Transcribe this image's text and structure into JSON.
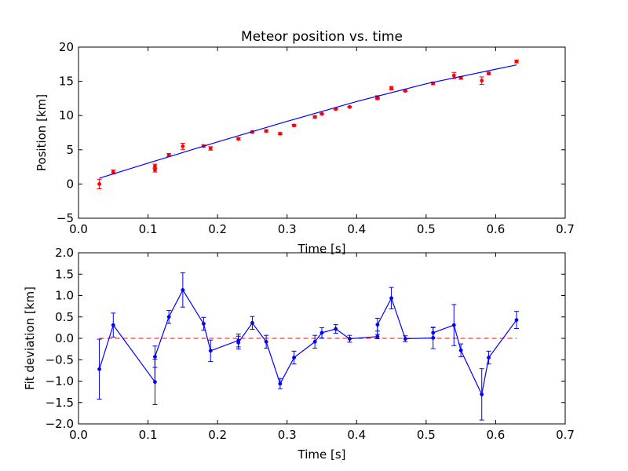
{
  "chart_data": [
    {
      "type": "scatter",
      "title": "Meteor position vs. time",
      "xlabel": "Time [s]",
      "ylabel": "Position [km]",
      "xlim": [
        0.0,
        0.7
      ],
      "ylim": [
        -5,
        20
      ],
      "xticks": [
        "0.0",
        "0.1",
        "0.2",
        "0.3",
        "0.4",
        "0.5",
        "0.6",
        "0.7"
      ],
      "yticks": [
        "−5",
        "0",
        "5",
        "10",
        "15",
        "20"
      ],
      "xtick_values": [
        0.0,
        0.1,
        0.2,
        0.3,
        0.4,
        0.5,
        0.6,
        0.7
      ],
      "ytick_values": [
        -5,
        0,
        5,
        10,
        15,
        20
      ],
      "grid": false,
      "series": [
        {
          "kind": "errorbar-points",
          "color": "#ff0000",
          "x": [
            0.03,
            0.05,
            0.11,
            0.11,
            0.13,
            0.15,
            0.18,
            0.19,
            0.23,
            0.25,
            0.27,
            0.29,
            0.31,
            0.34,
            0.35,
            0.37,
            0.39,
            0.43,
            0.43,
            0.45,
            0.47,
            0.51,
            0.54,
            0.55,
            0.58,
            0.59,
            0.63
          ],
          "y": [
            0.0,
            1.75,
            2.6,
            2.05,
            4.25,
            5.5,
            5.55,
            5.2,
            6.6,
            7.6,
            7.75,
            7.35,
            8.55,
            9.8,
            10.25,
            10.95,
            11.25,
            12.7,
            12.5,
            14.0,
            13.6,
            14.7,
            15.85,
            15.5,
            15.1,
            16.15,
            17.9
          ],
          "yerr": [
            0.7,
            0.3,
            0.3,
            0.3,
            0.2,
            0.45,
            0.15,
            0.25,
            0.15,
            0.15,
            0.15,
            0.15,
            0.15,
            0.15,
            0.1,
            0.1,
            0.1,
            0.2,
            0.15,
            0.25,
            0.1,
            0.2,
            0.45,
            0.2,
            0.55,
            0.2,
            0.2
          ]
        },
        {
          "kind": "fit-line",
          "color": "#0000ff",
          "x": [
            0.03,
            0.1,
            0.2,
            0.3,
            0.4,
            0.5,
            0.63
          ],
          "y": [
            0.85,
            3.05,
            6.15,
            9.15,
            12.05,
            14.65,
            17.4
          ]
        }
      ]
    },
    {
      "type": "line",
      "title": "",
      "xlabel": "Time [s]",
      "ylabel": "Fit deviation [km]",
      "xlim": [
        0.0,
        0.7
      ],
      "ylim": [
        -2.0,
        2.0
      ],
      "xticks": [
        "0.0",
        "0.1",
        "0.2",
        "0.3",
        "0.4",
        "0.5",
        "0.6",
        "0.7"
      ],
      "yticks": [
        "−2.0",
        "−1.5",
        "−1.0",
        "−0.5",
        "0.0",
        "0.5",
        "1.0",
        "1.5",
        "2.0"
      ],
      "xtick_values": [
        0.0,
        0.1,
        0.2,
        0.3,
        0.4,
        0.5,
        0.6,
        0.7
      ],
      "ytick_values": [
        -2.0,
        -1.5,
        -1.0,
        -0.5,
        0.0,
        0.5,
        1.0,
        1.5,
        2.0
      ],
      "grid": false,
      "zero_line": {
        "y": 0.0,
        "x_range": [
          0.03,
          0.63
        ],
        "color": "#ff0000",
        "style": "dashed"
      },
      "series": [
        {
          "kind": "errorbar-line",
          "color": "#0000ff",
          "x": [
            0.03,
            0.05,
            0.11,
            0.11,
            0.13,
            0.15,
            0.18,
            0.19,
            0.23,
            0.23,
            0.25,
            0.27,
            0.29,
            0.31,
            0.34,
            0.35,
            0.37,
            0.39,
            0.43,
            0.43,
            0.45,
            0.47,
            0.51,
            0.51,
            0.54,
            0.55,
            0.58,
            0.59,
            0.63
          ],
          "y": [
            -0.72,
            0.31,
            -1.02,
            -0.43,
            0.5,
            1.13,
            0.34,
            -0.29,
            -0.05,
            -0.1,
            0.36,
            -0.08,
            -1.06,
            -0.45,
            -0.08,
            0.13,
            0.22,
            -0.01,
            0.04,
            0.32,
            0.94,
            -0.01,
            0.01,
            0.13,
            0.31,
            -0.28,
            -1.31,
            -0.45,
            0.43
          ],
          "yerr": [
            0.7,
            0.28,
            0.53,
            0.25,
            0.15,
            0.4,
            0.15,
            0.25,
            0.15,
            0.15,
            0.15,
            0.15,
            0.12,
            0.15,
            0.15,
            0.12,
            0.1,
            0.08,
            0.05,
            0.15,
            0.25,
            0.07,
            0.25,
            0.12,
            0.48,
            0.15,
            0.6,
            0.15,
            0.2
          ]
        }
      ]
    }
  ]
}
